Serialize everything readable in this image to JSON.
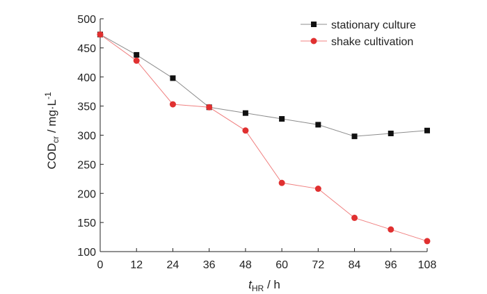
{
  "chart_data": {
    "type": "line",
    "x": [
      0,
      12,
      24,
      36,
      48,
      60,
      72,
      84,
      96,
      108
    ],
    "xticks": [
      0,
      12,
      24,
      36,
      48,
      60,
      72,
      84,
      96,
      108
    ],
    "yticks": [
      100,
      150,
      200,
      250,
      300,
      350,
      400,
      450,
      500
    ],
    "xlim": [
      0,
      108
    ],
    "ylim": [
      100,
      500
    ],
    "xlabel": {
      "main": "t",
      "sub": "HR",
      "rest": " / h"
    },
    "ylabel": {
      "main": "COD",
      "sub": "cr",
      "rest": " / mg·L",
      "sup": "-1"
    },
    "legend_position": "top-right",
    "grid": false,
    "series": [
      {
        "name": "stationary culture",
        "marker": "square",
        "marker_color": "#111111",
        "line_color": "#8c8c8c",
        "values": [
          473,
          438,
          398,
          348,
          338,
          328,
          318,
          298,
          303,
          308
        ]
      },
      {
        "name": "shake cultivation",
        "marker": "circle",
        "marker_color": "#e03030",
        "line_color": "#f08080",
        "values": [
          473,
          428,
          353,
          348,
          308,
          218,
          208,
          158,
          138,
          118
        ]
      }
    ]
  }
}
